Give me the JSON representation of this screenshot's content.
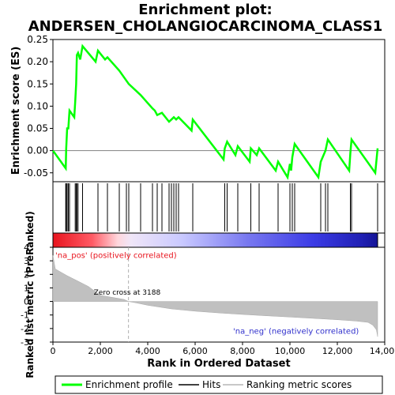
{
  "title": "Enrichment plot:",
  "subtitle": "ANDERSEN_CHOLANGIOCARCINOMA_CLASS1",
  "chart_data": [
    {
      "panel": "enrichment",
      "type": "line",
      "ylabel": "Enrichment score (ES)",
      "ylim": [
        -0.07,
        0.25
      ],
      "yticks": [
        -0.05,
        0.0,
        0.05,
        0.1,
        0.15,
        0.2,
        0.25
      ],
      "ytick_labels": [
        "-0.05",
        "0.00",
        "0.05",
        "0.10",
        "0.15",
        "0.20",
        "0.25"
      ],
      "series": [
        {
          "name": "Enrichment profile",
          "color": "#00ff00",
          "points": [
            [
              0,
              0.0
            ],
            [
              540,
              -0.04
            ],
            [
              560,
              0.005
            ],
            [
              600,
              0.05
            ],
            [
              650,
              0.05
            ],
            [
              700,
              0.09
            ],
            [
              900,
              0.075
            ],
            [
              940,
              0.11
            ],
            [
              980,
              0.15
            ],
            [
              1010,
              0.215
            ],
            [
              1060,
              0.22
            ],
            [
              1150,
              0.205
            ],
            [
              1250,
              0.235
            ],
            [
              1800,
              0.2
            ],
            [
              1900,
              0.225
            ],
            [
              2200,
              0.205
            ],
            [
              2300,
              0.21
            ],
            [
              2800,
              0.18
            ],
            [
              3200,
              0.15
            ],
            [
              3700,
              0.125
            ],
            [
              4200,
              0.095
            ],
            [
              4300,
              0.09
            ],
            [
              4400,
              0.08
            ],
            [
              4600,
              0.085
            ],
            [
              4900,
              0.065
            ],
            [
              5000,
              0.07
            ],
            [
              5100,
              0.075
            ],
            [
              5200,
              0.07
            ],
            [
              5300,
              0.075
            ],
            [
              5850,
              0.045
            ],
            [
              5900,
              0.07
            ],
            [
              7200,
              -0.02
            ],
            [
              7250,
              0.005
            ],
            [
              7350,
              0.02
            ],
            [
              7700,
              -0.01
            ],
            [
              7800,
              0.01
            ],
            [
              8300,
              -0.025
            ],
            [
              8350,
              0.005
            ],
            [
              8600,
              -0.01
            ],
            [
              8700,
              0.005
            ],
            [
              9400,
              -0.045
            ],
            [
              9500,
              -0.025
            ],
            [
              9900,
              -0.06
            ],
            [
              10000,
              -0.03
            ],
            [
              10050,
              -0.045
            ],
            [
              10100,
              -0.015
            ],
            [
              10200,
              0.015
            ],
            [
              11200,
              -0.06
            ],
            [
              11300,
              -0.025
            ],
            [
              11500,
              0.0
            ],
            [
              11600,
              0.025
            ],
            [
              12500,
              -0.045
            ],
            [
              12550,
              -0.005
            ],
            [
              12600,
              0.025
            ],
            [
              13600,
              -0.05
            ],
            [
              13700,
              0.005
            ]
          ]
        }
      ]
    },
    {
      "panel": "hits",
      "type": "scatter",
      "legend_entry": "Hits",
      "hit_ranks": [
        540,
        560,
        600,
        650,
        700,
        940,
        980,
        1010,
        1060,
        1250,
        1900,
        2300,
        2800,
        3100,
        3200,
        3700,
        4200,
        4400,
        4600,
        4900,
        5000,
        5100,
        5200,
        5300,
        5900,
        7250,
        7350,
        7800,
        8350,
        8700,
        9500,
        10000,
        10100,
        10200,
        11300,
        11500,
        11600,
        12550,
        12600,
        13700
      ]
    },
    {
      "panel": "ranked_metric",
      "type": "area",
      "ylabel": "Ranked list metric (PreRanked)",
      "xlabel": "Rank in Ordered Dataset",
      "xlim": [
        0,
        14000
      ],
      "ylim": [
        -3,
        4
      ],
      "xticks": [
        0,
        2000,
        4000,
        6000,
        8000,
        10000,
        12000,
        14000
      ],
      "xtick_labels": [
        "0",
        "2,000",
        "4,000",
        "6,000",
        "8,000",
        "10,000",
        "12,000",
        "14,000"
      ],
      "yticks": [
        -3,
        -2,
        -1,
        0,
        1,
        2,
        3,
        4
      ],
      "ytick_labels": [
        "-3",
        "-2",
        "-1",
        "0",
        "1",
        "2",
        "3",
        "4"
      ],
      "points": [
        [
          0,
          3.4
        ],
        [
          100,
          2.4
        ],
        [
          300,
          2.2
        ],
        [
          600,
          1.9
        ],
        [
          1000,
          1.55
        ],
        [
          1500,
          1.1
        ],
        [
          2000,
          0.45
        ],
        [
          2500,
          0.3
        ],
        [
          3000,
          0.15
        ],
        [
          3188,
          0.0
        ],
        [
          3500,
          -0.1
        ],
        [
          4000,
          -0.28
        ],
        [
          5000,
          -0.55
        ],
        [
          6000,
          -0.72
        ],
        [
          7000,
          -0.85
        ],
        [
          8000,
          -0.96
        ],
        [
          9000,
          -1.06
        ],
        [
          10000,
          -1.15
        ],
        [
          11000,
          -1.25
        ],
        [
          12000,
          -1.35
        ],
        [
          12800,
          -1.45
        ],
        [
          13300,
          -1.55
        ],
        [
          13500,
          -1.75
        ],
        [
          13650,
          -2.1
        ],
        [
          13700,
          -2.6
        ]
      ],
      "annotations": [
        "Zero cross at 3188",
        "'na_pos' (positively correlated)",
        "'na_neg' (negatively correlated)"
      ],
      "zero_cross": 3188
    }
  ],
  "legend": [
    {
      "label": "Enrichment profile",
      "color": "#00ff00"
    },
    {
      "label": "Hits",
      "color": "#000000"
    },
    {
      "label": "Ranking metric scores",
      "color": "#c0c0c0"
    }
  ]
}
